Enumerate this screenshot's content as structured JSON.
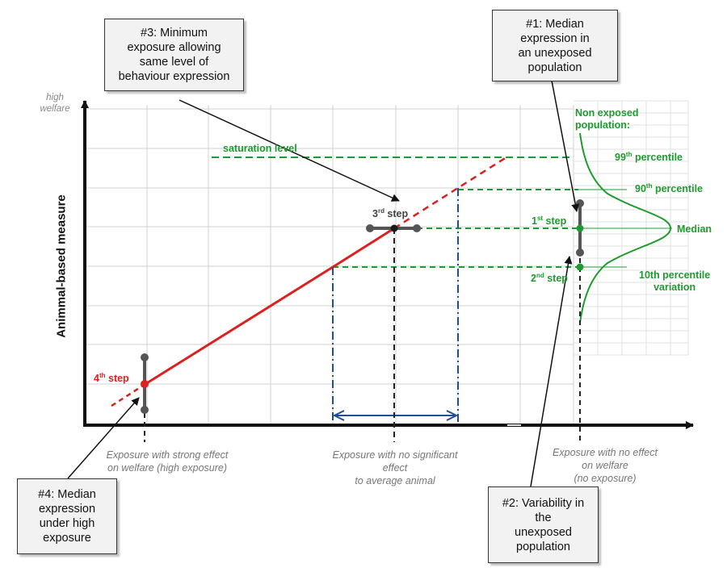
{
  "callouts": {
    "c1": [
      "#1: Median",
      "expression in",
      "an unexposed",
      "population"
    ],
    "c2": [
      "#2: Variability in",
      "the",
      "unexposed",
      "population"
    ],
    "c3": [
      "#3: Minimum",
      "exposure allowing",
      "same level of",
      "behaviour expression"
    ],
    "c4": [
      "#4: Median",
      "expression",
      "under high",
      "exposure"
    ]
  },
  "axes": {
    "y_title": "Animmal-based measure",
    "y_top": [
      "high",
      "welfare"
    ]
  },
  "x_labels": {
    "strong": [
      "Exposure with strong effect",
      "on welfare (high exposure)"
    ],
    "nosig": [
      "Exposure with no significant",
      "effect",
      "to average animal"
    ],
    "noeffect": [
      "Exposure with no effect",
      "on welfare",
      "(no exposure)"
    ]
  },
  "saturation_label": "saturation level",
  "distribution": {
    "title": [
      "Non exposed",
      "population:"
    ],
    "p99": {
      "num": "99",
      "sup": "th",
      "text": " percentile"
    },
    "p90": {
      "num": "90",
      "sup": "th",
      "text": " percentile"
    },
    "median": "Median",
    "p10": [
      "10th percentile",
      "variation"
    ]
  },
  "steps": {
    "s1": {
      "num": "1",
      "sup": "st",
      "text": " step"
    },
    "s2": {
      "num": "2",
      "sup": "nd",
      "text": " step"
    },
    "s3": {
      "num": "3",
      "sup": "rd",
      "text": " step"
    },
    "s4": {
      "num": "4",
      "sup": "th",
      "text": " step"
    }
  },
  "colors": {
    "red": "#dd1f1f",
    "green": "#1e9b2e",
    "blue": "#1f4e96",
    "grey": "#555555",
    "grid": "#d0d0d0"
  }
}
